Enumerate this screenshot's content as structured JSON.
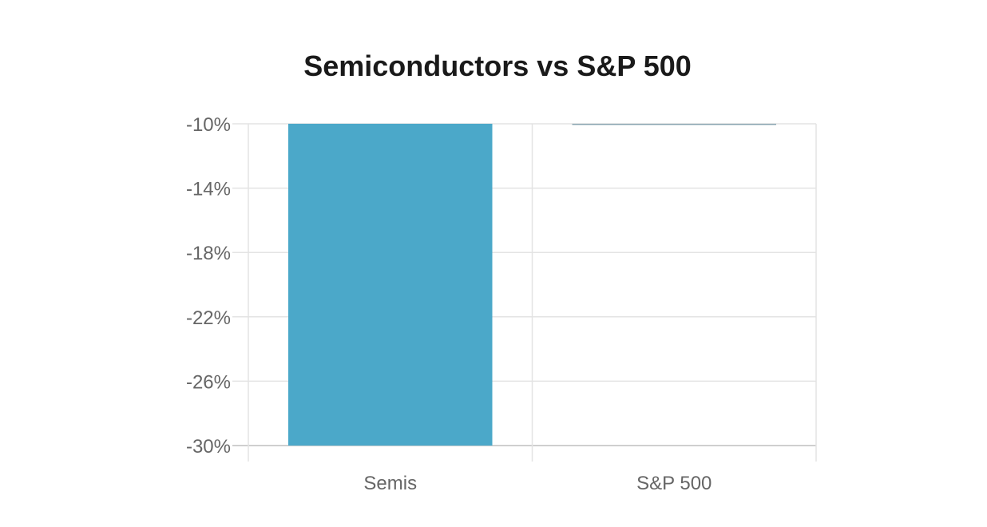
{
  "chart_data": {
    "type": "bar",
    "title": "Semiconductors vs S&P 500",
    "categories": [
      "Semis",
      "S&P 500"
    ],
    "values": [
      -30,
      -10
    ],
    "ylim": [
      -30,
      -10
    ],
    "yticks": [
      "-10%",
      "-14%",
      "-18%",
      "-22%",
      "-26%",
      "-30%"
    ],
    "ytick_values": [
      -10,
      -14,
      -18,
      -22,
      -26,
      -30
    ],
    "grid": true,
    "colors": {
      "semis": "#4ba8c9",
      "sp500": "#8aa4b0",
      "grid": "#e3e3e3",
      "axis": "#cfcfcf",
      "tick_text": "#666666"
    }
  }
}
